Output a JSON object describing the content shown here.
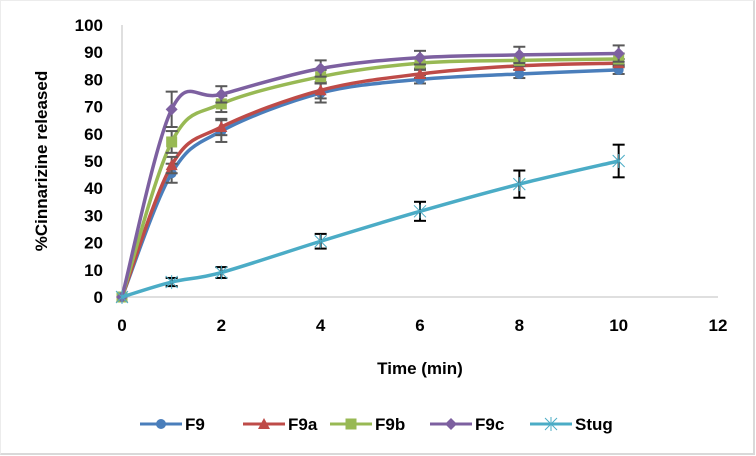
{
  "chart_data": {
    "type": "line",
    "title": "",
    "xlabel": "Time (min)",
    "ylabel": "%Cinnarizine released",
    "xlim": [
      0,
      12
    ],
    "ylim": [
      0,
      100
    ],
    "xticks": [
      0,
      2,
      4,
      6,
      8,
      10,
      12
    ],
    "yticks": [
      0,
      10,
      20,
      30,
      40,
      50,
      60,
      70,
      80,
      90,
      100
    ],
    "grid": false,
    "legend_position": "bottom",
    "x": [
      0,
      1,
      2,
      4,
      6,
      8,
      10
    ],
    "series": [
      {
        "name": "F9",
        "color": "#4a7ebb",
        "marker": "circle",
        "smooth": true,
        "values": [
          0,
          45.5,
          61,
          75,
          80,
          82,
          83.5
        ],
        "errors": [
          0,
          3.5,
          4,
          3.5,
          1.5,
          1.5,
          1.5
        ]
      },
      {
        "name": "F9a",
        "color": "#be4b48",
        "marker": "triangle",
        "smooth": true,
        "values": [
          0,
          48.5,
          62.5,
          76,
          82,
          85,
          86
        ],
        "errors": [
          0,
          3,
          3,
          3,
          1.5,
          1.5,
          1.5
        ]
      },
      {
        "name": "F9b",
        "color": "#98b954",
        "marker": "square",
        "smooth": true,
        "values": [
          0,
          57,
          71,
          81,
          86,
          87,
          87.5
        ],
        "errors": [
          0,
          4,
          3,
          2.5,
          2,
          2,
          2
        ]
      },
      {
        "name": "F9c",
        "color": "#7d60a0",
        "marker": "diamond",
        "smooth": true,
        "values": [
          0,
          69,
          74.5,
          84,
          88,
          89,
          89.5
        ],
        "errors": [
          0,
          6.5,
          3,
          3,
          2.5,
          3,
          3
        ]
      },
      {
        "name": "Stug",
        "color": "#4bacc6",
        "marker": "asterisk",
        "smooth": true,
        "values": [
          0,
          5.5,
          9,
          20.5,
          31.5,
          41.5,
          50
        ],
        "errors": [
          0,
          1.5,
          2,
          2.7,
          3.5,
          5,
          6
        ]
      }
    ]
  }
}
